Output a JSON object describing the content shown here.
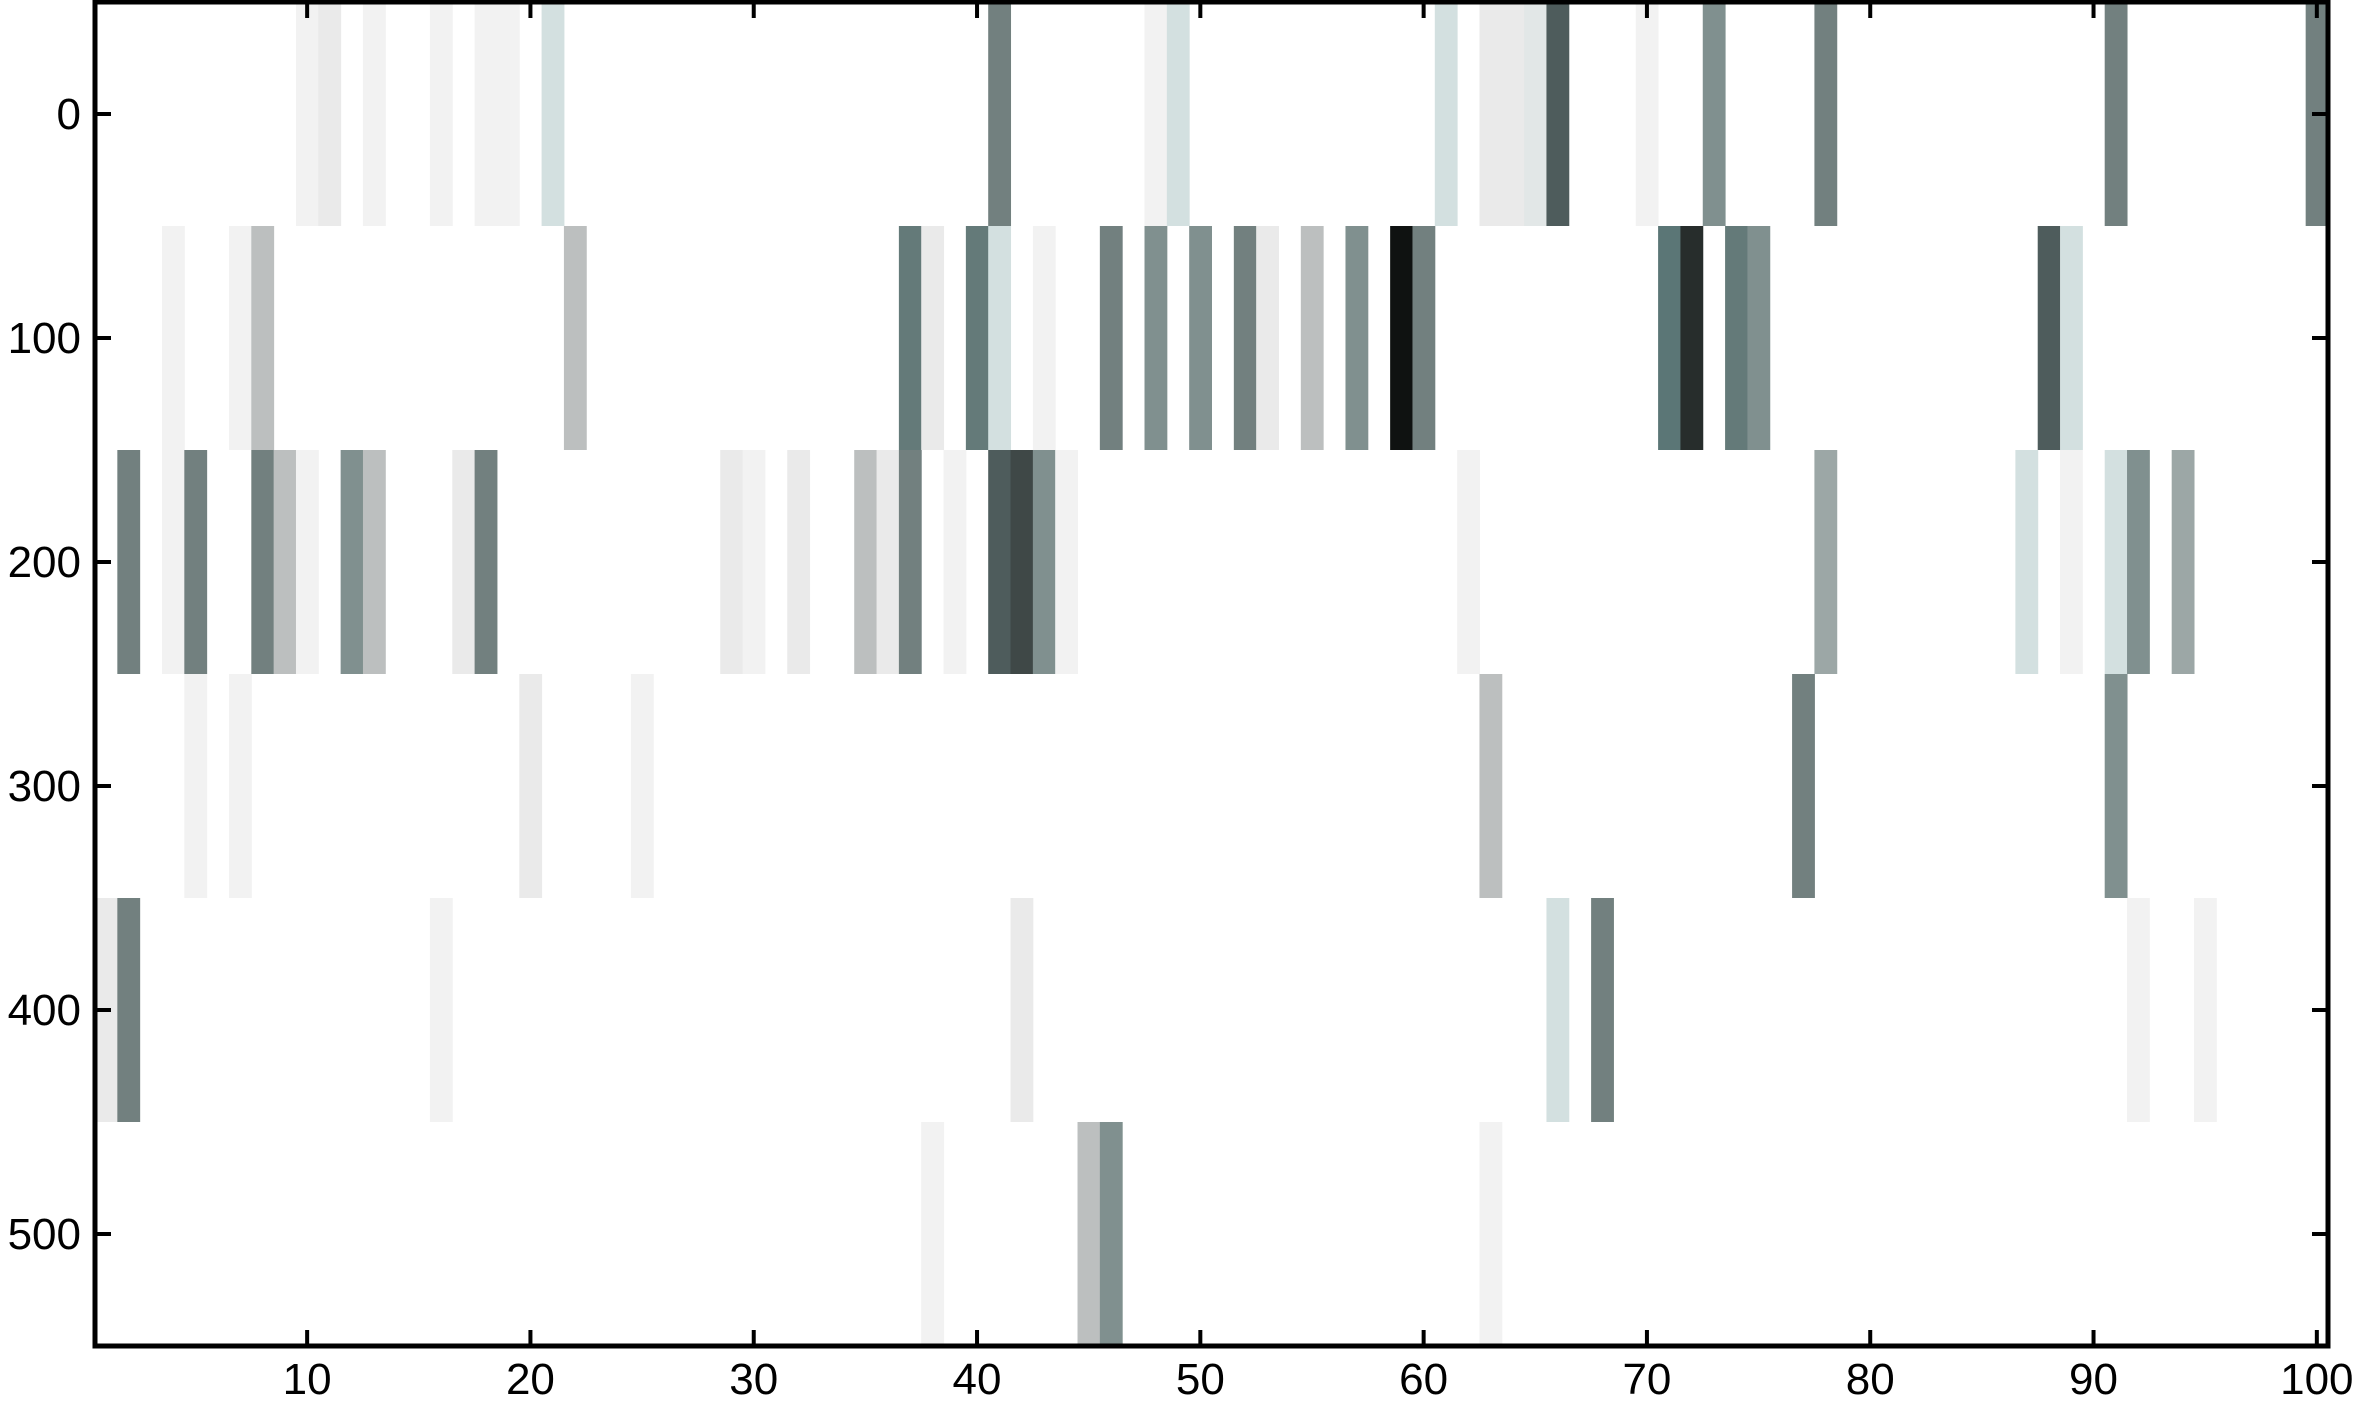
{
  "chart_data": {
    "type": "heatmap",
    "title": "",
    "xlabel": "",
    "ylabel": "",
    "xlim": [
      0.5,
      100.5
    ],
    "ylim": [
      550,
      -50
    ],
    "y_reversed": true,
    "xticks": [
      10,
      20,
      30,
      40,
      50,
      60,
      70,
      80,
      90,
      100
    ],
    "yticks": [
      0,
      100,
      200,
      300,
      400,
      500
    ],
    "row_starts": [
      0,
      100,
      200,
      300,
      400,
      500
    ],
    "row_step": 100,
    "colormap": [
      "#ffffff",
      "#ebebeb",
      "#cbdddd",
      "#b8b8b8",
      "#8a9c9a",
      "#717f7e",
      "#5b7676",
      "#4b5555",
      "#0f1211"
    ],
    "grid": false,
    "colorbar": false,
    "cells": [
      {
        "row": 0,
        "col": 10,
        "v": 0.08
      },
      {
        "row": 0,
        "col": 11,
        "v": 0.13
      },
      {
        "row": 0,
        "col": 13,
        "v": 0.08
      },
      {
        "row": 0,
        "col": 16,
        "v": 0.08
      },
      {
        "row": 0,
        "col": 18,
        "v": 0.08
      },
      {
        "row": 0,
        "col": 19,
        "v": 0.08
      },
      {
        "row": 0,
        "col": 21,
        "v": 0.22
      },
      {
        "row": 0,
        "col": 41,
        "v": 0.62
      },
      {
        "row": 0,
        "col": 48,
        "v": 0.08
      },
      {
        "row": 0,
        "col": 49,
        "v": 0.22
      },
      {
        "row": 0,
        "col": 61,
        "v": 0.22
      },
      {
        "row": 0,
        "col": 63,
        "v": 0.13
      },
      {
        "row": 0,
        "col": 64,
        "v": 0.13
      },
      {
        "row": 0,
        "col": 65,
        "v": 0.16
      },
      {
        "row": 0,
        "col": 66,
        "v": 0.85
      },
      {
        "row": 0,
        "col": 70,
        "v": 0.08
      },
      {
        "row": 0,
        "col": 73,
        "v": 0.55
      },
      {
        "row": 0,
        "col": 78,
        "v": 0.62
      },
      {
        "row": 0,
        "col": 91,
        "v": 0.62
      },
      {
        "row": 0,
        "col": 100,
        "v": 0.62
      },
      {
        "row": 1,
        "col": 4,
        "v": 0.08
      },
      {
        "row": 1,
        "col": 7,
        "v": 0.08
      },
      {
        "row": 1,
        "col": 8,
        "v": 0.35
      },
      {
        "row": 1,
        "col": 22,
        "v": 0.35
      },
      {
        "row": 1,
        "col": 37,
        "v": 0.7
      },
      {
        "row": 1,
        "col": 38,
        "v": 0.13
      },
      {
        "row": 1,
        "col": 40,
        "v": 0.7
      },
      {
        "row": 1,
        "col": 41,
        "v": 0.22
      },
      {
        "row": 1,
        "col": 43,
        "v": 0.08
      },
      {
        "row": 1,
        "col": 46,
        "v": 0.62
      },
      {
        "row": 1,
        "col": 48,
        "v": 0.55
      },
      {
        "row": 1,
        "col": 50,
        "v": 0.55
      },
      {
        "row": 1,
        "col": 52,
        "v": 0.62
      },
      {
        "row": 1,
        "col": 53,
        "v": 0.13
      },
      {
        "row": 1,
        "col": 55,
        "v": 0.35
      },
      {
        "row": 1,
        "col": 57,
        "v": 0.55
      },
      {
        "row": 1,
        "col": 59,
        "v": 1.0
      },
      {
        "row": 1,
        "col": 60,
        "v": 0.62
      },
      {
        "row": 1,
        "col": 71,
        "v": 0.75
      },
      {
        "row": 1,
        "col": 72,
        "v": 0.95
      },
      {
        "row": 1,
        "col": 74,
        "v": 0.7
      },
      {
        "row": 1,
        "col": 75,
        "v": 0.55
      },
      {
        "row": 1,
        "col": 88,
        "v": 0.85
      },
      {
        "row": 1,
        "col": 89,
        "v": 0.22
      },
      {
        "row": 2,
        "col": 2,
        "v": 0.62
      },
      {
        "row": 2,
        "col": 4,
        "v": 0.08
      },
      {
        "row": 2,
        "col": 5,
        "v": 0.62
      },
      {
        "row": 2,
        "col": 8,
        "v": 0.62
      },
      {
        "row": 2,
        "col": 9,
        "v": 0.35
      },
      {
        "row": 2,
        "col": 10,
        "v": 0.08
      },
      {
        "row": 2,
        "col": 12,
        "v": 0.55
      },
      {
        "row": 2,
        "col": 13,
        "v": 0.35
      },
      {
        "row": 2,
        "col": 17,
        "v": 0.13
      },
      {
        "row": 2,
        "col": 18,
        "v": 0.62
      },
      {
        "row": 2,
        "col": 29,
        "v": 0.13
      },
      {
        "row": 2,
        "col": 30,
        "v": 0.08
      },
      {
        "row": 2,
        "col": 32,
        "v": 0.13
      },
      {
        "row": 2,
        "col": 35,
        "v": 0.35
      },
      {
        "row": 2,
        "col": 36,
        "v": 0.13
      },
      {
        "row": 2,
        "col": 37,
        "v": 0.62
      },
      {
        "row": 2,
        "col": 39,
        "v": 0.08
      },
      {
        "row": 2,
        "col": 41,
        "v": 0.85
      },
      {
        "row": 2,
        "col": 42,
        "v": 0.9
      },
      {
        "row": 2,
        "col": 43,
        "v": 0.55
      },
      {
        "row": 2,
        "col": 44,
        "v": 0.08
      },
      {
        "row": 2,
        "col": 62,
        "v": 0.08
      },
      {
        "row": 2,
        "col": 78,
        "v": 0.45
      },
      {
        "row": 2,
        "col": 87,
        "v": 0.22
      },
      {
        "row": 2,
        "col": 89,
        "v": 0.08
      },
      {
        "row": 2,
        "col": 91,
        "v": 0.22
      },
      {
        "row": 2,
        "col": 92,
        "v": 0.55
      },
      {
        "row": 2,
        "col": 94,
        "v": 0.45
      },
      {
        "row": 3,
        "col": 5,
        "v": 0.08
      },
      {
        "row": 3,
        "col": 7,
        "v": 0.08
      },
      {
        "row": 3,
        "col": 20,
        "v": 0.13
      },
      {
        "row": 3,
        "col": 25,
        "v": 0.08
      },
      {
        "row": 3,
        "col": 63,
        "v": 0.35
      },
      {
        "row": 3,
        "col": 77,
        "v": 0.62
      },
      {
        "row": 3,
        "col": 91,
        "v": 0.55
      },
      {
        "row": 4,
        "col": 1,
        "v": 0.13
      },
      {
        "row": 4,
        "col": 2,
        "v": 0.62
      },
      {
        "row": 4,
        "col": 16,
        "v": 0.08
      },
      {
        "row": 4,
        "col": 42,
        "v": 0.13
      },
      {
        "row": 4,
        "col": 66,
        "v": 0.22
      },
      {
        "row": 4,
        "col": 68,
        "v": 0.62
      },
      {
        "row": 4,
        "col": 92,
        "v": 0.08
      },
      {
        "row": 4,
        "col": 95,
        "v": 0.08
      },
      {
        "row": 5,
        "col": 38,
        "v": 0.08
      },
      {
        "row": 5,
        "col": 45,
        "v": 0.35
      },
      {
        "row": 5,
        "col": 46,
        "v": 0.55
      },
      {
        "row": 5,
        "col": 63,
        "v": 0.08
      }
    ]
  }
}
